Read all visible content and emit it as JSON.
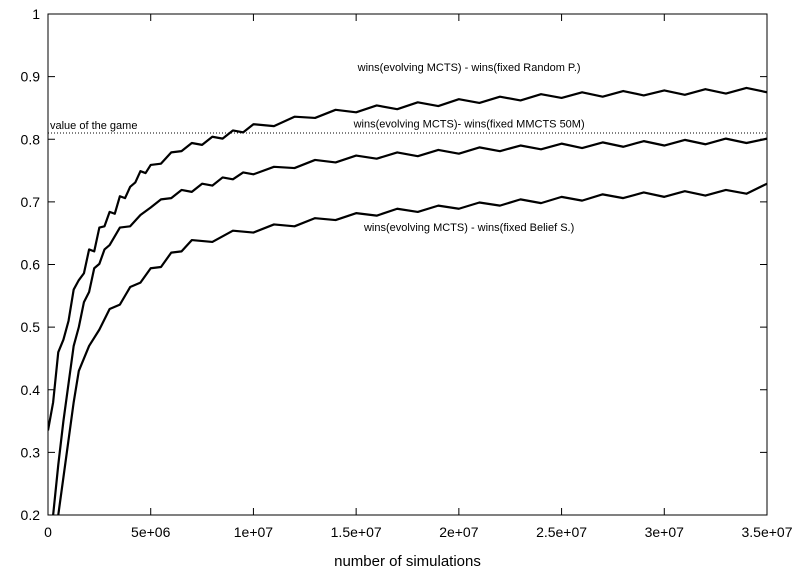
{
  "chart_data": {
    "type": "line",
    "title": "",
    "xlabel": "number of simulations",
    "ylabel": "",
    "xlim": [
      0,
      35000000
    ],
    "ylim": [
      0.2,
      1.0
    ],
    "grid": false,
    "legend": "none",
    "x_ticks": [
      {
        "value": 0,
        "label": "0"
      },
      {
        "value": 5000000,
        "label": "5e+06"
      },
      {
        "value": 10000000,
        "label": "1e+07"
      },
      {
        "value": 15000000,
        "label": "1.5e+07"
      },
      {
        "value": 20000000,
        "label": "2e+07"
      },
      {
        "value": 25000000,
        "label": "2.5e+07"
      },
      {
        "value": 30000000,
        "label": "3e+07"
      },
      {
        "value": 35000000,
        "label": "3.5e+07"
      }
    ],
    "y_ticks": [
      {
        "value": 0.2,
        "label": "0.2"
      },
      {
        "value": 0.3,
        "label": "0.3"
      },
      {
        "value": 0.4,
        "label": "0.4"
      },
      {
        "value": 0.5,
        "label": "0.5"
      },
      {
        "value": 0.6,
        "label": "0.6"
      },
      {
        "value": 0.7,
        "label": "0.7"
      },
      {
        "value": 0.8,
        "label": "0.8"
      },
      {
        "value": 0.9,
        "label": "0.9"
      },
      {
        "value": 1.0,
        "label": "1"
      }
    ],
    "reference_line": {
      "y": 0.81,
      "label": "value of the game",
      "style": "dotted"
    },
    "series": [
      {
        "name": "wins(evolving MCTS) - wins(fixed Random P.)",
        "color": "#000000",
        "x": [
          0,
          250000,
          500000,
          750000,
          1000000,
          1250000,
          1500000,
          1750000,
          2000000,
          2250000,
          2500000,
          2750000,
          3000000,
          3250000,
          3500000,
          3750000,
          4000000,
          4250000,
          4500000,
          4750000,
          5000000,
          5500000,
          6000000,
          6500000,
          7000000,
          7500000,
          8000000,
          8500000,
          9000000,
          9500000,
          10000000,
          11000000,
          12000000,
          13000000,
          14000000,
          15000000,
          16000000,
          17000000,
          18000000,
          19000000,
          20000000,
          21000000,
          22000000,
          23000000,
          24000000,
          25000000,
          26000000,
          27000000,
          28000000,
          29000000,
          30000000,
          31000000,
          32000000,
          33000000,
          34000000,
          35000000
        ],
        "values": [
          0.335,
          0.38,
          0.46,
          0.48,
          0.51,
          0.56,
          0.575,
          0.59,
          0.62,
          0.625,
          0.655,
          0.665,
          0.68,
          0.685,
          0.705,
          0.71,
          0.72,
          0.735,
          0.745,
          0.75,
          0.755,
          0.765,
          0.775,
          0.785,
          0.79,
          0.795,
          0.8,
          0.805,
          0.81,
          0.815,
          0.82,
          0.825,
          0.832,
          0.838,
          0.843,
          0.847,
          0.85,
          0.852,
          0.855,
          0.857,
          0.86,
          0.862,
          0.864,
          0.866,
          0.868,
          0.87,
          0.871,
          0.872,
          0.873,
          0.874,
          0.874,
          0.875,
          0.876,
          0.877,
          0.878,
          0.879
        ],
        "label": "wins(evolving MCTS) - wins(fixed Random P.)",
        "label_value": [
          20500000,
          0.915
        ]
      },
      {
        "name": "wins(evolving MCTS)- wins(fixed MMCTS 50M)",
        "color": "#000000",
        "x": [
          250000,
          500000,
          750000,
          1000000,
          1250000,
          1500000,
          1750000,
          2000000,
          2250000,
          2500000,
          2750000,
          3000000,
          3500000,
          4000000,
          4500000,
          5000000,
          5500000,
          6000000,
          6500000,
          7000000,
          7500000,
          8000000,
          8500000,
          9000000,
          9500000,
          10000000,
          11000000,
          12000000,
          13000000,
          14000000,
          15000000,
          16000000,
          17000000,
          18000000,
          19000000,
          20000000,
          21000000,
          22000000,
          23000000,
          24000000,
          25000000,
          26000000,
          27000000,
          28000000,
          29000000,
          30000000,
          31000000,
          32000000,
          33000000,
          34000000,
          35000000
        ],
        "values": [
          0.2,
          0.28,
          0.35,
          0.41,
          0.47,
          0.5,
          0.54,
          0.56,
          0.59,
          0.605,
          0.62,
          0.635,
          0.655,
          0.665,
          0.675,
          0.695,
          0.7,
          0.71,
          0.715,
          0.72,
          0.725,
          0.73,
          0.735,
          0.74,
          0.743,
          0.748,
          0.752,
          0.758,
          0.763,
          0.767,
          0.77,
          0.773,
          0.775,
          0.777,
          0.779,
          0.781,
          0.783,
          0.785,
          0.786,
          0.788,
          0.789,
          0.79,
          0.791,
          0.792,
          0.793,
          0.794,
          0.795,
          0.796,
          0.797,
          0.798,
          0.797
        ],
        "label": "wins(evolving MCTS)- wins(fixed MMCTS 50M)",
        "label_value": [
          20500000,
          0.825
        ]
      },
      {
        "name": "wins(evolving MCTS) - wins(fixed Belief S.)",
        "color": "#000000",
        "x": [
          500000,
          750000,
          1000000,
          1250000,
          1500000,
          1750000,
          2000000,
          2500000,
          3000000,
          3500000,
          4000000,
          4500000,
          5000000,
          5500000,
          6000000,
          6500000,
          7000000,
          8000000,
          9000000,
          10000000,
          11000000,
          12000000,
          13000000,
          14000000,
          15000000,
          16000000,
          17000000,
          18000000,
          19000000,
          20000000,
          21000000,
          22000000,
          23000000,
          24000000,
          25000000,
          26000000,
          27000000,
          28000000,
          29000000,
          30000000,
          31000000,
          32000000,
          33000000,
          34000000,
          35000000
        ],
        "values": [
          0.2,
          0.26,
          0.32,
          0.38,
          0.43,
          0.45,
          0.47,
          0.5,
          0.525,
          0.54,
          0.56,
          0.575,
          0.59,
          0.6,
          0.615,
          0.625,
          0.635,
          0.64,
          0.65,
          0.655,
          0.66,
          0.665,
          0.67,
          0.675,
          0.678,
          0.682,
          0.685,
          0.688,
          0.69,
          0.693,
          0.695,
          0.698,
          0.7,
          0.702,
          0.704,
          0.706,
          0.708,
          0.71,
          0.711,
          0.712,
          0.713,
          0.714,
          0.715,
          0.717,
          0.725
        ],
        "label": "wins(evolving MCTS) - wins(fixed Belief S.)",
        "label_value": [
          20500000,
          0.66
        ]
      }
    ]
  }
}
